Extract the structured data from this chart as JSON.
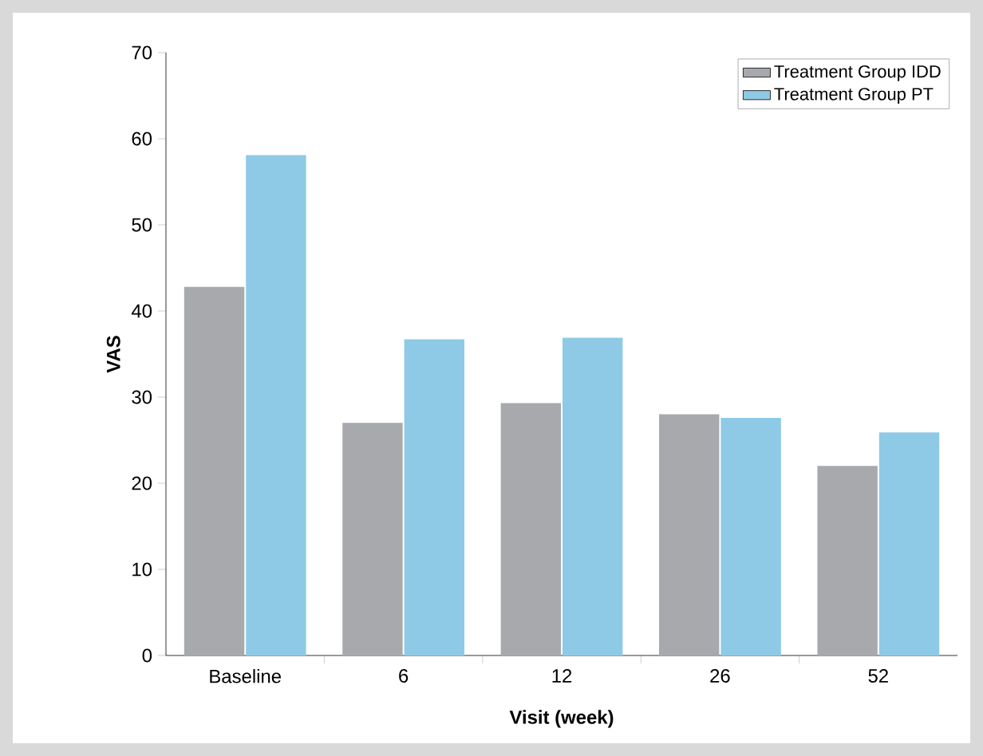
{
  "chart_data": {
    "type": "bar",
    "xlabel": "Visit (week)",
    "ylabel": "VAS",
    "categories": [
      "Baseline",
      "6",
      "12",
      "26",
      "52"
    ],
    "series": [
      {
        "name": "Treatment Group IDD",
        "color": "#a7a9ac",
        "values": [
          42.8,
          27.0,
          29.3,
          28.0,
          22.0
        ]
      },
      {
        "name": "Treatment Group PT",
        "color": "#8ecae6",
        "values": [
          58.1,
          36.7,
          36.9,
          27.6,
          25.9
        ]
      }
    ],
    "ylim": [
      0,
      70
    ],
    "yticks": [
      0,
      10,
      20,
      30,
      40,
      50,
      60,
      70
    ],
    "legend": "top right"
  }
}
